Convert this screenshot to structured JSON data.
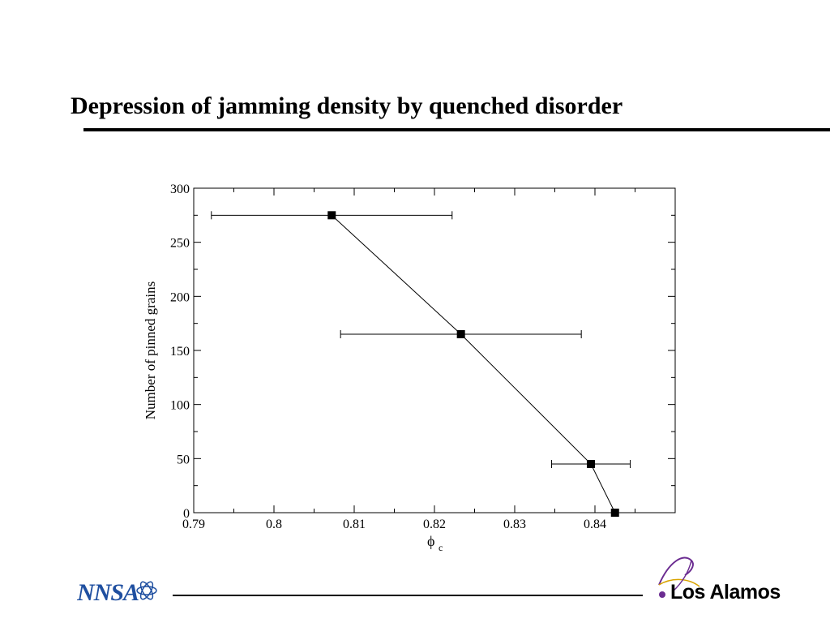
{
  "slide": {
    "title": "Depression of jamming density by quenched disorder"
  },
  "chart_data": {
    "type": "scatter",
    "title": "",
    "xlabel_main": "ϕ",
    "xlabel_sub": "c",
    "ylabel": "Number of pinned grains",
    "xlim": [
      0.79,
      0.85
    ],
    "ylim": [
      0,
      300
    ],
    "xticks": [
      0.79,
      0.8,
      0.81,
      0.82,
      0.83,
      0.84
    ],
    "xtick_labels": [
      "0.79",
      "0.8",
      "0.81",
      "0.82",
      "0.83",
      "0.84"
    ],
    "yticks": [
      0,
      50,
      100,
      150,
      200,
      250,
      300
    ],
    "ytick_labels": [
      "0",
      "50",
      "100",
      "150",
      "200",
      "250",
      "300"
    ],
    "grid": false,
    "series": [
      {
        "points": [
          {
            "x": 0.8072,
            "y": 275,
            "xerr_low": 0.7922,
            "xerr_high": 0.8222
          },
          {
            "x": 0.8233,
            "y": 165,
            "xerr_low": 0.8083,
            "xerr_high": 0.8383
          },
          {
            "x": 0.8395,
            "y": 45,
            "xerr_low": 0.8346,
            "xerr_high": 0.8444
          },
          {
            "x": 0.8425,
            "y": 0
          }
        ],
        "marker": "square",
        "line": true,
        "color": "#000000"
      }
    ]
  },
  "logos": {
    "left": "NNSA",
    "right": "Los Alamos"
  },
  "colors": {
    "nnsa_blue": "#1f4fa0",
    "lanl_purple": "#6b2c91",
    "lanl_gold": "#d9a400"
  }
}
